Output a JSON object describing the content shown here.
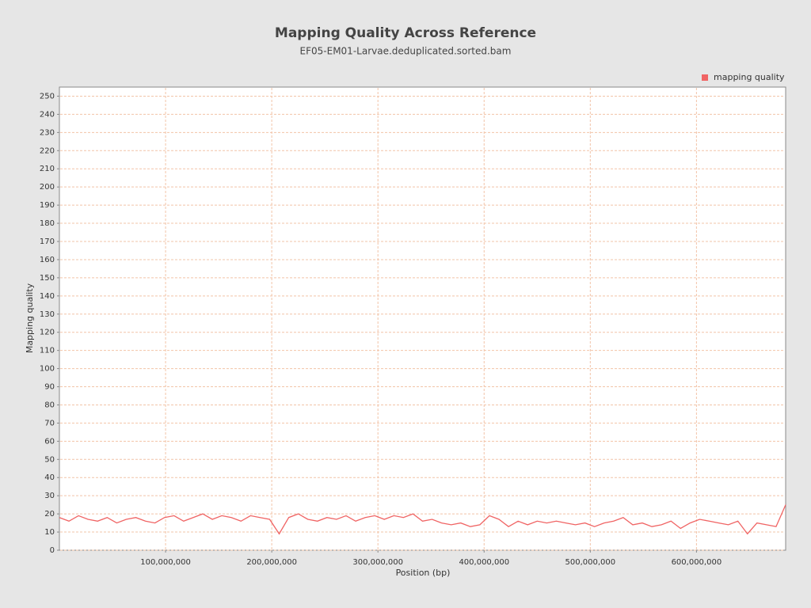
{
  "chart_data": {
    "type": "line",
    "title": "Mapping Quality Across Reference",
    "subtitle": "EF05-EM01-Larvae.deduplicated.sorted.bam",
    "x_label": "Position (bp)",
    "y_label": "Mapping quality",
    "legend_position": "top-right",
    "grid": true,
    "xlim": [
      0,
      684000000
    ],
    "ylim": [
      0,
      255
    ],
    "xticks": [
      {
        "value": 100000000,
        "label": "100,000,000"
      },
      {
        "value": 200000000,
        "label": "200,000,000"
      },
      {
        "value": 300000000,
        "label": "300,000,000"
      },
      {
        "value": 400000000,
        "label": "400,000,000"
      },
      {
        "value": 500000000,
        "label": "500,000,000"
      },
      {
        "value": 600000000,
        "label": "600,000,000"
      }
    ],
    "yticks": [
      0,
      10,
      20,
      30,
      40,
      50,
      60,
      70,
      80,
      90,
      100,
      110,
      120,
      130,
      140,
      150,
      160,
      170,
      180,
      190,
      200,
      210,
      220,
      230,
      240,
      250
    ],
    "x": [
      0,
      9000000,
      18000000,
      27000000,
      36000000,
      45000000,
      54000000,
      63000000,
      72000000,
      81000000,
      90000000,
      99000000,
      108000000,
      117000000,
      126000000,
      135000000,
      144000000,
      153000000,
      162000000,
      171000000,
      180000000,
      189000000,
      198000000,
      207000000,
      216000000,
      225000000,
      234000000,
      243000000,
      252000000,
      261000000,
      270000000,
      279000000,
      288000000,
      297000000,
      306000000,
      315000000,
      324000000,
      333000000,
      342000000,
      351000000,
      360000000,
      369000000,
      378000000,
      387000000,
      396000000,
      405000000,
      414000000,
      423000000,
      432000000,
      441000000,
      450000000,
      459000000,
      468000000,
      477000000,
      486000000,
      495000000,
      504000000,
      513000000,
      522000000,
      531000000,
      540000000,
      549000000,
      558000000,
      567000000,
      576000000,
      585000000,
      594000000,
      603000000,
      612000000,
      621000000,
      630000000,
      639000000,
      648000000,
      657000000,
      666000000,
      675000000,
      684000000
    ],
    "series": [
      {
        "name": "mapping quality",
        "color": "#f06464",
        "values": [
          18,
          16,
          19,
          17,
          16,
          18,
          15,
          17,
          18,
          16,
          15,
          18,
          19,
          16,
          18,
          20,
          17,
          19,
          18,
          16,
          19,
          18,
          17,
          9,
          18,
          20,
          17,
          16,
          18,
          17,
          19,
          16,
          18,
          19,
          17,
          19,
          18,
          20,
          16,
          17,
          15,
          14,
          15,
          13,
          14,
          19,
          17,
          13,
          16,
          14,
          16,
          15,
          16,
          15,
          14,
          15,
          13,
          15,
          16,
          18,
          14,
          15,
          13,
          14,
          16,
          12,
          15,
          17,
          16,
          15,
          14,
          16,
          9,
          15,
          14,
          13,
          25
        ]
      }
    ]
  }
}
